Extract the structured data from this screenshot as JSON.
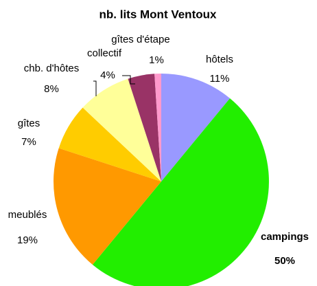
{
  "chart_data": {
    "type": "pie",
    "title": "nb. lits Mont Ventoux",
    "categories": [
      "hôtels",
      "campings",
      "meublés",
      "gîtes",
      "chb. d'hôtes",
      "collectif",
      "gîtes d'étape"
    ],
    "values": [
      11,
      50,
      19,
      7,
      8,
      4,
      1
    ],
    "value_labels": [
      "11%",
      "50%",
      "19%",
      "7%",
      "8%",
      "4%",
      "1%"
    ],
    "colors": [
      "#9999ff",
      "#22ee00",
      "#ff9900",
      "#ffcc00",
      "#ffff99",
      "#993366",
      "#ff99cc"
    ]
  }
}
